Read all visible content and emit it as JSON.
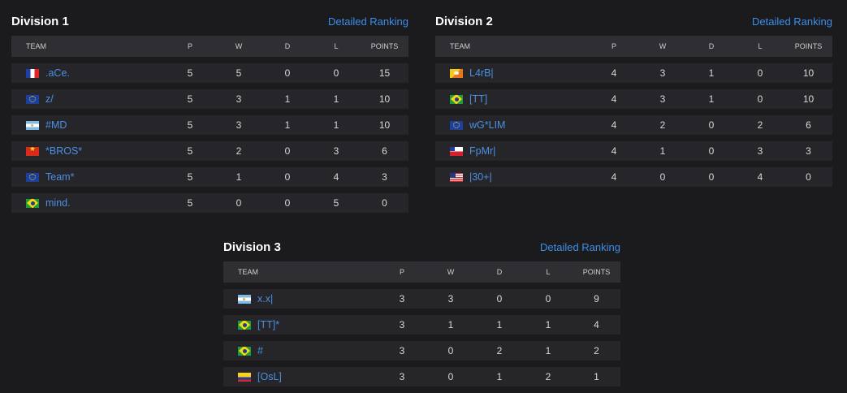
{
  "columns": {
    "team": "TEAM",
    "p": "P",
    "w": "W",
    "d": "D",
    "l": "L",
    "points": "POINTS"
  },
  "detailed_label": "Detailed Ranking",
  "divisions": [
    {
      "title": "Division 1",
      "rows": [
        {
          "flag": "fr",
          "name": ".aCe.",
          "p": "5",
          "w": "5",
          "d": "0",
          "l": "0",
          "pts": "15"
        },
        {
          "flag": "eu",
          "name": "z/",
          "p": "5",
          "w": "3",
          "d": "1",
          "l": "1",
          "pts": "10"
        },
        {
          "flag": "ar",
          "name": "#MD",
          "p": "5",
          "w": "3",
          "d": "1",
          "l": "1",
          "pts": "10"
        },
        {
          "flag": "vn",
          "name": "*BROS*",
          "p": "5",
          "w": "2",
          "d": "0",
          "l": "3",
          "pts": "6"
        },
        {
          "flag": "eu",
          "name": "Team*",
          "p": "5",
          "w": "1",
          "d": "0",
          "l": "4",
          "pts": "3"
        },
        {
          "flag": "br",
          "name": "mind.",
          "p": "5",
          "w": "0",
          "d": "0",
          "l": "5",
          "pts": "0"
        }
      ]
    },
    {
      "title": "Division 2",
      "rows": [
        {
          "flag": "bt",
          "name": "L4rB|",
          "p": "4",
          "w": "3",
          "d": "1",
          "l": "0",
          "pts": "10"
        },
        {
          "flag": "br",
          "name": "[TT]",
          "p": "4",
          "w": "3",
          "d": "1",
          "l": "0",
          "pts": "10"
        },
        {
          "flag": "eu",
          "name": "wG*LIM",
          "p": "4",
          "w": "2",
          "d": "0",
          "l": "2",
          "pts": "6"
        },
        {
          "flag": "cl",
          "name": "FpMr|",
          "p": "4",
          "w": "1",
          "d": "0",
          "l": "3",
          "pts": "3"
        },
        {
          "flag": "us",
          "name": "|30+|",
          "p": "4",
          "w": "0",
          "d": "0",
          "l": "4",
          "pts": "0"
        }
      ]
    },
    {
      "title": "Division 3",
      "rows": [
        {
          "flag": "ar",
          "name": "x.x|",
          "p": "3",
          "w": "3",
          "d": "0",
          "l": "0",
          "pts": "9"
        },
        {
          "flag": "br",
          "name": "[TT]*",
          "p": "3",
          "w": "1",
          "d": "1",
          "l": "1",
          "pts": "4"
        },
        {
          "flag": "br",
          "name": "#",
          "p": "3",
          "w": "0",
          "d": "2",
          "l": "1",
          "pts": "2"
        },
        {
          "flag": "co",
          "name": "[OsL]",
          "p": "3",
          "w": "0",
          "d": "1",
          "l": "2",
          "pts": "1"
        }
      ]
    }
  ]
}
